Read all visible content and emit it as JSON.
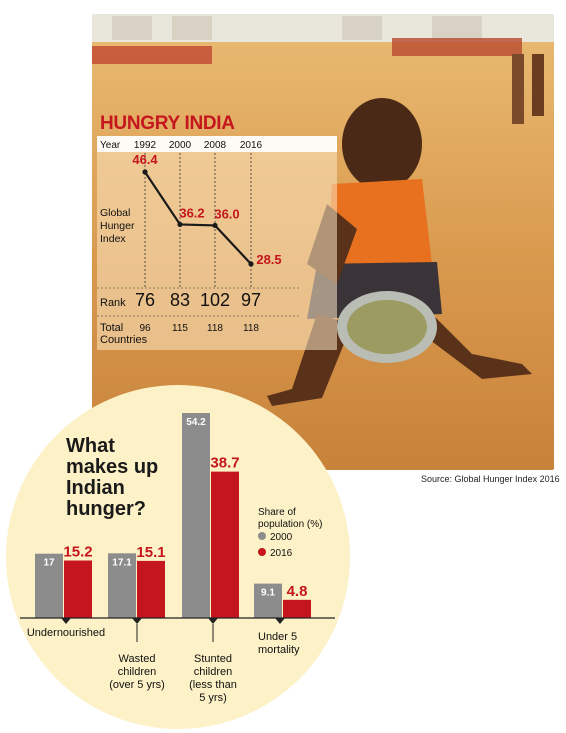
{
  "source": "Source: Global Hunger Index 2016",
  "chart_data": [
    {
      "type": "line",
      "title": "HUNGRY INDIA",
      "x_header": "Year",
      "x": [
        "1992",
        "2000",
        "2008",
        "2016"
      ],
      "series": [
        {
          "values": [
            46.4,
            36.2,
            36.0,
            28.5
          ]
        }
      ],
      "ylabel_lines": [
        "Global",
        "Hunger",
        "Index"
      ],
      "table_rows": [
        {
          "label_lines": [
            "Rank"
          ],
          "values": [
            "76",
            "83",
            "102",
            "97"
          ]
        },
        {
          "label_lines": [
            "Total",
            "Countries"
          ],
          "values": [
            "96",
            "115",
            "118",
            "118"
          ]
        }
      ],
      "colors": {
        "line": "#1a1a1a",
        "labels": "#c4161c"
      }
    },
    {
      "type": "bar",
      "title_lines": [
        "What",
        "makes up",
        "Indian",
        "hunger?"
      ],
      "legend_title_lines": [
        "Share of",
        "population (%)"
      ],
      "legend_placement": "right",
      "categories": [
        {
          "lines": [
            "Undernourished"
          ]
        },
        {
          "lines": [
            "Wasted",
            "children",
            "(over 5 yrs)"
          ]
        },
        {
          "lines": [
            "Stunted",
            "children",
            "(less than",
            "5 yrs)"
          ]
        },
        {
          "lines": [
            "Under 5",
            "mortality"
          ]
        }
      ],
      "series": [
        {
          "name": "2000",
          "values": [
            17,
            17.1,
            54.2,
            9.1
          ],
          "color": "#8c8c8c"
        },
        {
          "name": "2016",
          "values": [
            15.2,
            15.1,
            38.7,
            4.8
          ],
          "color": "#c4161c"
        }
      ],
      "colors": {
        "circle": "#fdf1c7"
      }
    }
  ]
}
